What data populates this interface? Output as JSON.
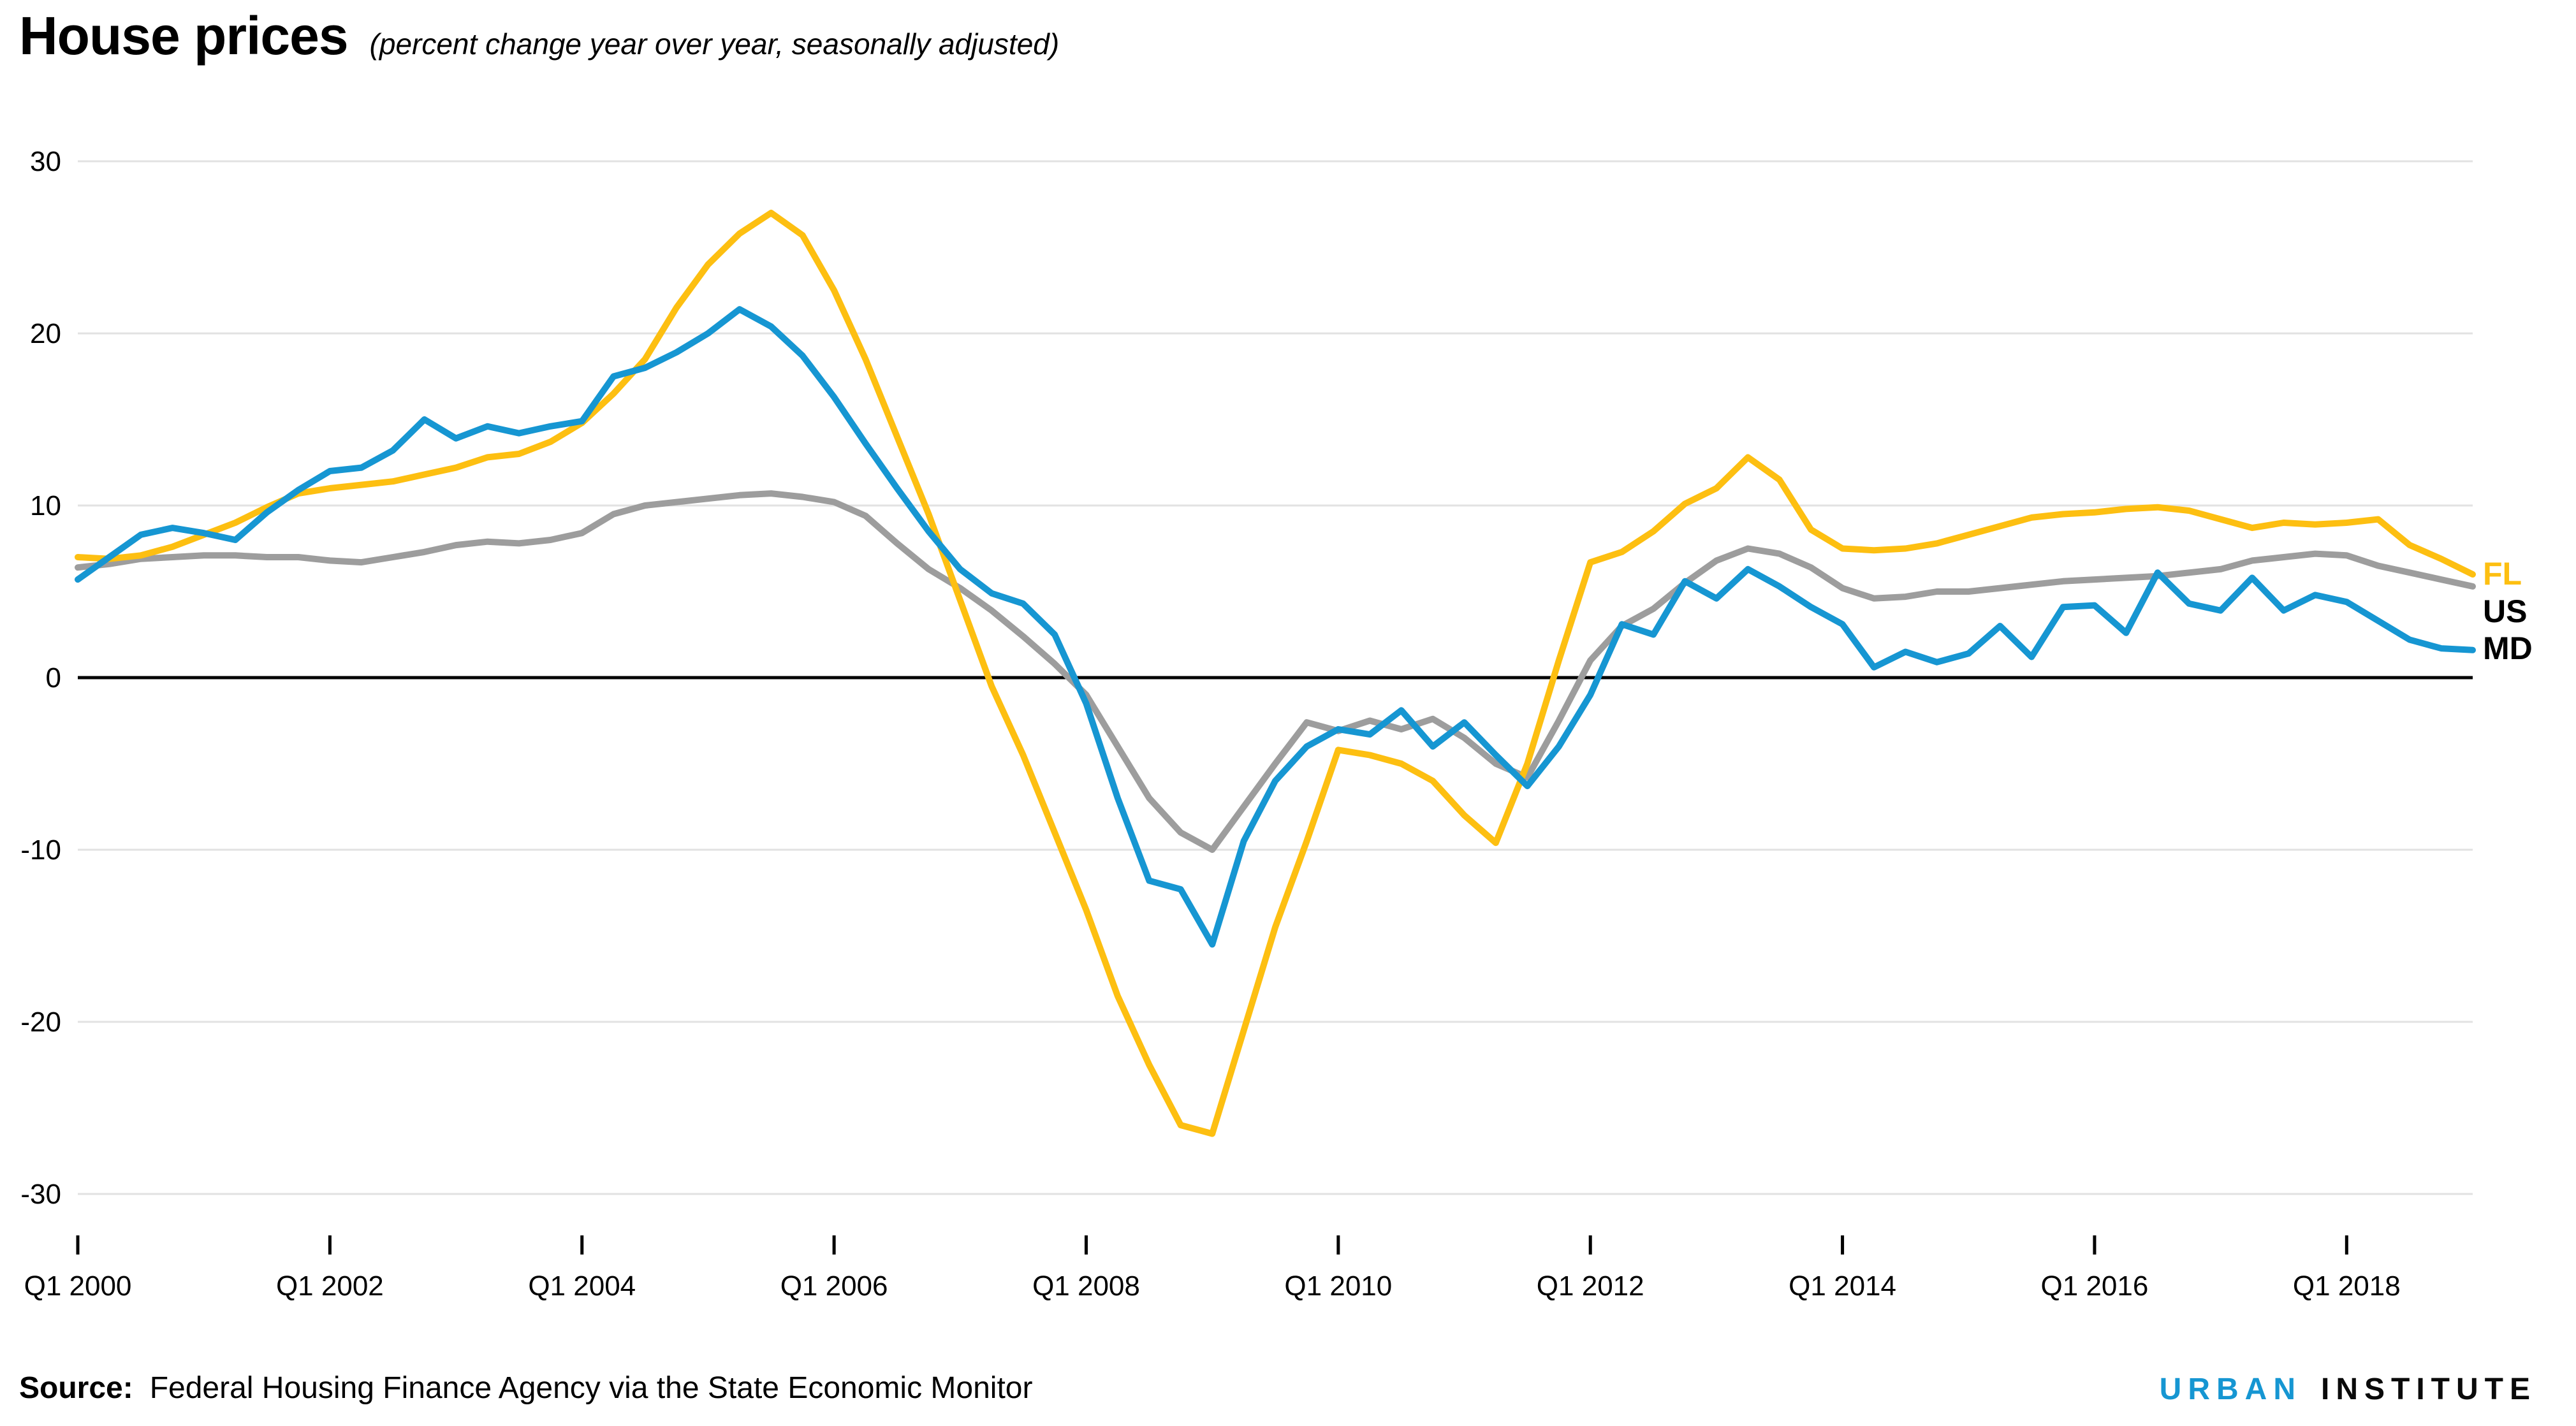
{
  "header": {
    "title": "House prices",
    "subtitle": "(percent change year over year, seasonally adjusted)"
  },
  "footer": {
    "source_label": "Source:",
    "source_text": "Federal Housing Finance Agency via the State Economic Monitor",
    "logo_left": "URBAN",
    "logo_right": "INSTITUTE"
  },
  "colors": {
    "fl": "#fdbf11",
    "us": "#9d9d9d",
    "md": "#1696d2",
    "zero_line": "#000000",
    "gridline": "#e2e2e2",
    "axis_text": "#000000",
    "logo_blue": "#1696d2"
  },
  "chart_data": {
    "type": "line",
    "title": "House prices",
    "subtitle": "(percent change year over year, seasonally adjusted)",
    "ylabel": "",
    "xlabel": "",
    "ylim": [
      -30,
      30
    ],
    "grid": "horizontal",
    "legend_position": "right-of-line-ends",
    "y_ticks": [
      {
        "v": 30,
        "label": "30"
      },
      {
        "v": 20,
        "label": "20"
      },
      {
        "v": 10,
        "label": "10"
      },
      {
        "v": 0,
        "label": "0"
      },
      {
        "v": -10,
        "label": "-10"
      },
      {
        "v": -20,
        "label": "-20"
      },
      {
        "v": -30,
        "label": "-30"
      }
    ],
    "x_tick_labels": [
      "Q1 2000",
      "Q1 2002",
      "Q1 2004",
      "Q1 2006",
      "Q1 2008",
      "Q1 2010",
      "Q1 2012",
      "Q1 2014",
      "Q1 2016",
      "Q1 2018"
    ],
    "x_tick_every": 8,
    "quarters": [
      "Q1 2000",
      "Q2 2000",
      "Q3 2000",
      "Q4 2000",
      "Q1 2001",
      "Q2 2001",
      "Q3 2001",
      "Q4 2001",
      "Q1 2002",
      "Q2 2002",
      "Q3 2002",
      "Q4 2002",
      "Q1 2003",
      "Q2 2003",
      "Q3 2003",
      "Q4 2003",
      "Q1 2004",
      "Q2 2004",
      "Q3 2004",
      "Q4 2004",
      "Q1 2005",
      "Q2 2005",
      "Q3 2005",
      "Q4 2005",
      "Q1 2006",
      "Q2 2006",
      "Q3 2006",
      "Q4 2006",
      "Q1 2007",
      "Q2 2007",
      "Q3 2007",
      "Q4 2007",
      "Q1 2008",
      "Q2 2008",
      "Q3 2008",
      "Q4 2008",
      "Q1 2009",
      "Q2 2009",
      "Q3 2009",
      "Q4 2009",
      "Q1 2010",
      "Q2 2010",
      "Q3 2010",
      "Q4 2010",
      "Q1 2011",
      "Q2 2011",
      "Q3 2011",
      "Q4 2011",
      "Q1 2012",
      "Q2 2012",
      "Q3 2012",
      "Q4 2012",
      "Q1 2013",
      "Q2 2013",
      "Q3 2013",
      "Q4 2013",
      "Q1 2014",
      "Q2 2014",
      "Q3 2014",
      "Q4 2014",
      "Q1 2015",
      "Q2 2015",
      "Q3 2015",
      "Q4 2015",
      "Q1 2016",
      "Q2 2016",
      "Q3 2016",
      "Q4 2016",
      "Q1 2017",
      "Q2 2017",
      "Q3 2017",
      "Q4 2017",
      "Q1 2018",
      "Q2 2018",
      "Q3 2018",
      "Q4 2018",
      "Q1 2019"
    ],
    "series": [
      {
        "name": "US",
        "label": "US",
        "color": "#9d9d9d",
        "label_color": "#000000",
        "values": [
          6.4,
          6.6,
          6.9,
          7.0,
          7.1,
          7.1,
          7.0,
          7.0,
          6.8,
          6.7,
          7.0,
          7.3,
          7.7,
          7.9,
          7.8,
          8.0,
          8.4,
          9.5,
          10.0,
          10.2,
          10.4,
          10.6,
          10.7,
          10.5,
          10.2,
          9.4,
          7.8,
          6.3,
          5.2,
          3.9,
          2.4,
          0.8,
          -1.0,
          -4.0,
          -7.0,
          -9.0,
          -10.0,
          -7.5,
          -5.0,
          -2.6,
          -3.1,
          -2.5,
          -3.0,
          -2.4,
          -3.5,
          -5.0,
          -5.8,
          -2.5,
          1.0,
          3.0,
          4.0,
          5.5,
          6.8,
          7.5,
          7.2,
          6.4,
          5.2,
          4.6,
          4.7,
          5.0,
          5.0,
          5.2,
          5.4,
          5.6,
          5.7,
          5.8,
          5.9,
          6.1,
          6.3,
          6.8,
          7.0,
          7.2,
          7.1,
          6.5,
          6.1,
          5.7,
          5.3
        ]
      },
      {
        "name": "FL",
        "label": "FL",
        "color": "#fdbf11",
        "label_color": "#fdbf11",
        "values": [
          7.0,
          6.9,
          7.1,
          7.6,
          8.3,
          9.0,
          9.9,
          10.7,
          11.0,
          11.2,
          11.4,
          11.8,
          12.2,
          12.8,
          13.0,
          13.7,
          14.8,
          16.5,
          18.5,
          21.5,
          24.0,
          25.8,
          27.0,
          25.7,
          22.5,
          18.5,
          14.0,
          9.5,
          4.5,
          -0.5,
          -4.5,
          -9.0,
          -13.5,
          -18.5,
          -22.5,
          -26.0,
          -26.5,
          -20.5,
          -14.5,
          -9.5,
          -4.2,
          -4.5,
          -5.0,
          -6.0,
          -8.0,
          -9.6,
          -5.0,
          1.0,
          6.7,
          7.3,
          8.5,
          10.1,
          11.0,
          12.8,
          11.5,
          8.6,
          7.5,
          7.4,
          7.5,
          7.8,
          8.3,
          8.8,
          9.3,
          9.5,
          9.6,
          9.8,
          9.9,
          9.7,
          9.2,
          8.7,
          9.0,
          8.9,
          9.0,
          9.2,
          7.7,
          6.9,
          6.0
        ]
      },
      {
        "name": "MD",
        "label": "MD",
        "color": "#1696d2",
        "label_color": "#000000",
        "values": [
          5.7,
          7.0,
          8.3,
          8.7,
          8.4,
          8.0,
          9.6,
          10.9,
          12.0,
          12.2,
          13.2,
          15.0,
          13.9,
          14.6,
          14.2,
          14.6,
          14.9,
          17.5,
          18.0,
          18.9,
          20.0,
          21.4,
          20.4,
          18.7,
          16.3,
          13.6,
          11.0,
          8.5,
          6.3,
          4.9,
          4.3,
          2.5,
          -1.5,
          -7.0,
          -11.8,
          -12.3,
          -15.5,
          -9.5,
          -6.0,
          -4.0,
          -3.0,
          -3.3,
          -1.9,
          -4.0,
          -2.6,
          -4.5,
          -6.3,
          -4.0,
          -1.0,
          3.1,
          2.5,
          5.6,
          4.6,
          6.3,
          5.3,
          4.1,
          3.1,
          0.6,
          1.5,
          0.9,
          1.4,
          3.0,
          1.2,
          4.1,
          4.2,
          2.6,
          6.1,
          4.3,
          3.9,
          5.8,
          3.9,
          4.8,
          4.4,
          3.3,
          2.2,
          1.7,
          1.6
        ]
      }
    ]
  }
}
